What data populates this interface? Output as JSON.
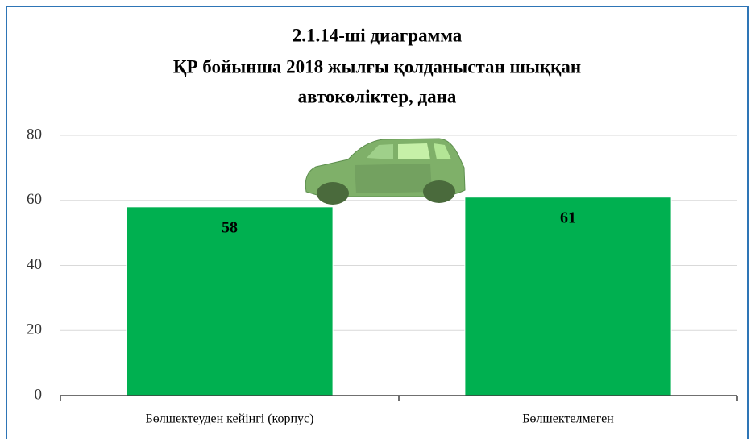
{
  "chart_data": {
    "type": "bar",
    "title": [
      "2.1.14-ші диаграмма",
      "ҚР бойынша 2018 жылғы қолданыстан шыққан",
      "автокөліктер, дана"
    ],
    "categories": [
      "Бөлшектеуден кейінгі (корпус)",
      "Бөлшектелмеген"
    ],
    "values": [
      58,
      61
    ],
    "color": "#00b050",
    "ylim": [
      0,
      80
    ],
    "yticks": [
      0,
      20,
      40,
      60,
      80
    ],
    "grid": true
  }
}
